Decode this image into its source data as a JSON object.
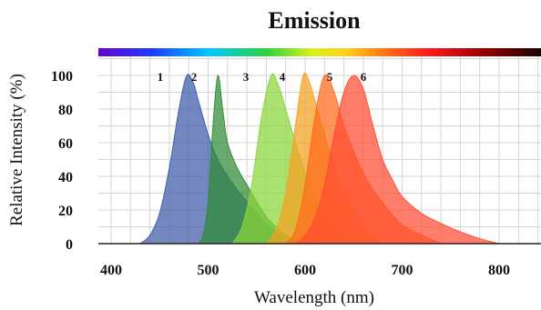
{
  "chart_data": {
    "type": "area",
    "title": "Emission",
    "xlabel": "Wavelength (nm)",
    "ylabel": "Relative Intensity (%)",
    "xlim": [
      400,
      840
    ],
    "ylim": [
      0,
      110
    ],
    "xticks": [
      400,
      500,
      600,
      700,
      800
    ],
    "yticks": [
      0,
      20,
      40,
      60,
      80,
      100
    ],
    "grid": true,
    "spectrum_bar": true,
    "series": [
      {
        "name": "1",
        "color": "#3d5aa8",
        "x": [
          430,
          440,
          450,
          460,
          470,
          478,
          485,
          490,
          500,
          510,
          520,
          530,
          540,
          550,
          560,
          570,
          580,
          590,
          600
        ],
        "y": [
          0,
          5,
          18,
          45,
          80,
          100,
          95,
          85,
          65,
          50,
          40,
          32,
          25,
          18,
          12,
          7,
          4,
          2,
          0
        ]
      },
      {
        "name": "2",
        "color": "#2e8a35",
        "x": [
          490,
          495,
          500,
          505,
          510,
          515,
          520,
          530,
          540,
          550,
          560,
          570,
          580,
          590,
          600
        ],
        "y": [
          0,
          5,
          25,
          70,
          100,
          80,
          60,
          45,
          35,
          25,
          16,
          10,
          5,
          2,
          0
        ]
      },
      {
        "name": "3",
        "color": "#8ad63a",
        "x": [
          525,
          535,
          545,
          555,
          565,
          572,
          580,
          590,
          600,
          610,
          620,
          630,
          640,
          650
        ],
        "y": [
          0,
          10,
          35,
          75,
          100,
          95,
          80,
          60,
          42,
          28,
          17,
          9,
          3,
          0
        ]
      },
      {
        "name": "4",
        "color": "#f5a020",
        "x": [
          560,
          570,
          580,
          590,
          598,
          605,
          615,
          625,
          635,
          645,
          655,
          665,
          680
        ],
        "y": [
          0,
          8,
          30,
          70,
          100,
          95,
          75,
          55,
          38,
          25,
          14,
          6,
          0
        ]
      },
      {
        "name": "5",
        "color": "#ff6a1a",
        "x": [
          580,
          590,
          600,
          610,
          620,
          630,
          640,
          650,
          660,
          670,
          680,
          690,
          700,
          720,
          740
        ],
        "y": [
          0,
          8,
          35,
          75,
          100,
          90,
          70,
          55,
          42,
          32,
          24,
          17,
          11,
          5,
          0
        ]
      },
      {
        "name": "6",
        "color": "#ff4b32",
        "x": [
          590,
          600,
          610,
          620,
          630,
          640,
          650,
          660,
          670,
          680,
          690,
          700,
          720,
          740,
          760,
          780,
          800
        ],
        "y": [
          0,
          5,
          15,
          35,
          65,
          90,
          100,
          92,
          70,
          50,
          38,
          28,
          18,
          12,
          7,
          3,
          0
        ]
      }
    ]
  }
}
